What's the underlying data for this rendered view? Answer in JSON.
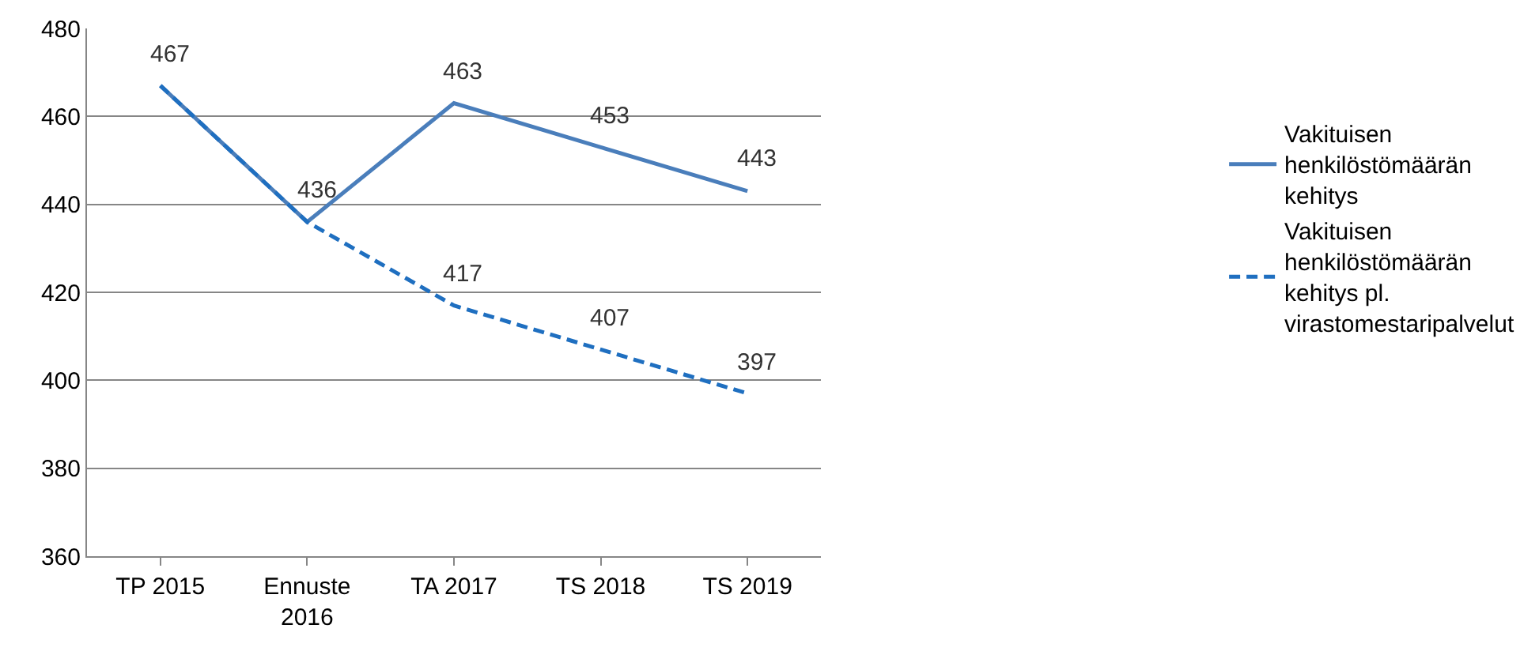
{
  "chart_data": {
    "type": "line",
    "categories": [
      "TP 2015",
      "Ennuste 2016",
      "TA 2017",
      "TS 2018",
      "TS 2019"
    ],
    "series": [
      {
        "name": "Vakituisen henkilöstömäärän kehitys",
        "color": "#4a7ebb",
        "line_style": "solid",
        "values": [
          467,
          436,
          463,
          453,
          443
        ],
        "value_labels": [
          "467",
          "436",
          "463",
          "453",
          "443"
        ]
      },
      {
        "name": "Vakituisen henkilöstömäärän kehitys pl. virastomestaripalvelut",
        "color": "#1f6fc0",
        "line_style": "dashed",
        "values": [
          467,
          436,
          417,
          407,
          397
        ],
        "value_labels": [
          null,
          null,
          "417",
          "407",
          "397"
        ]
      }
    ],
    "ylim": [
      360,
      480
    ],
    "yticks": [
      360,
      380,
      400,
      420,
      440,
      460,
      480
    ],
    "grid": "y",
    "legend": "right",
    "marker": "none"
  }
}
